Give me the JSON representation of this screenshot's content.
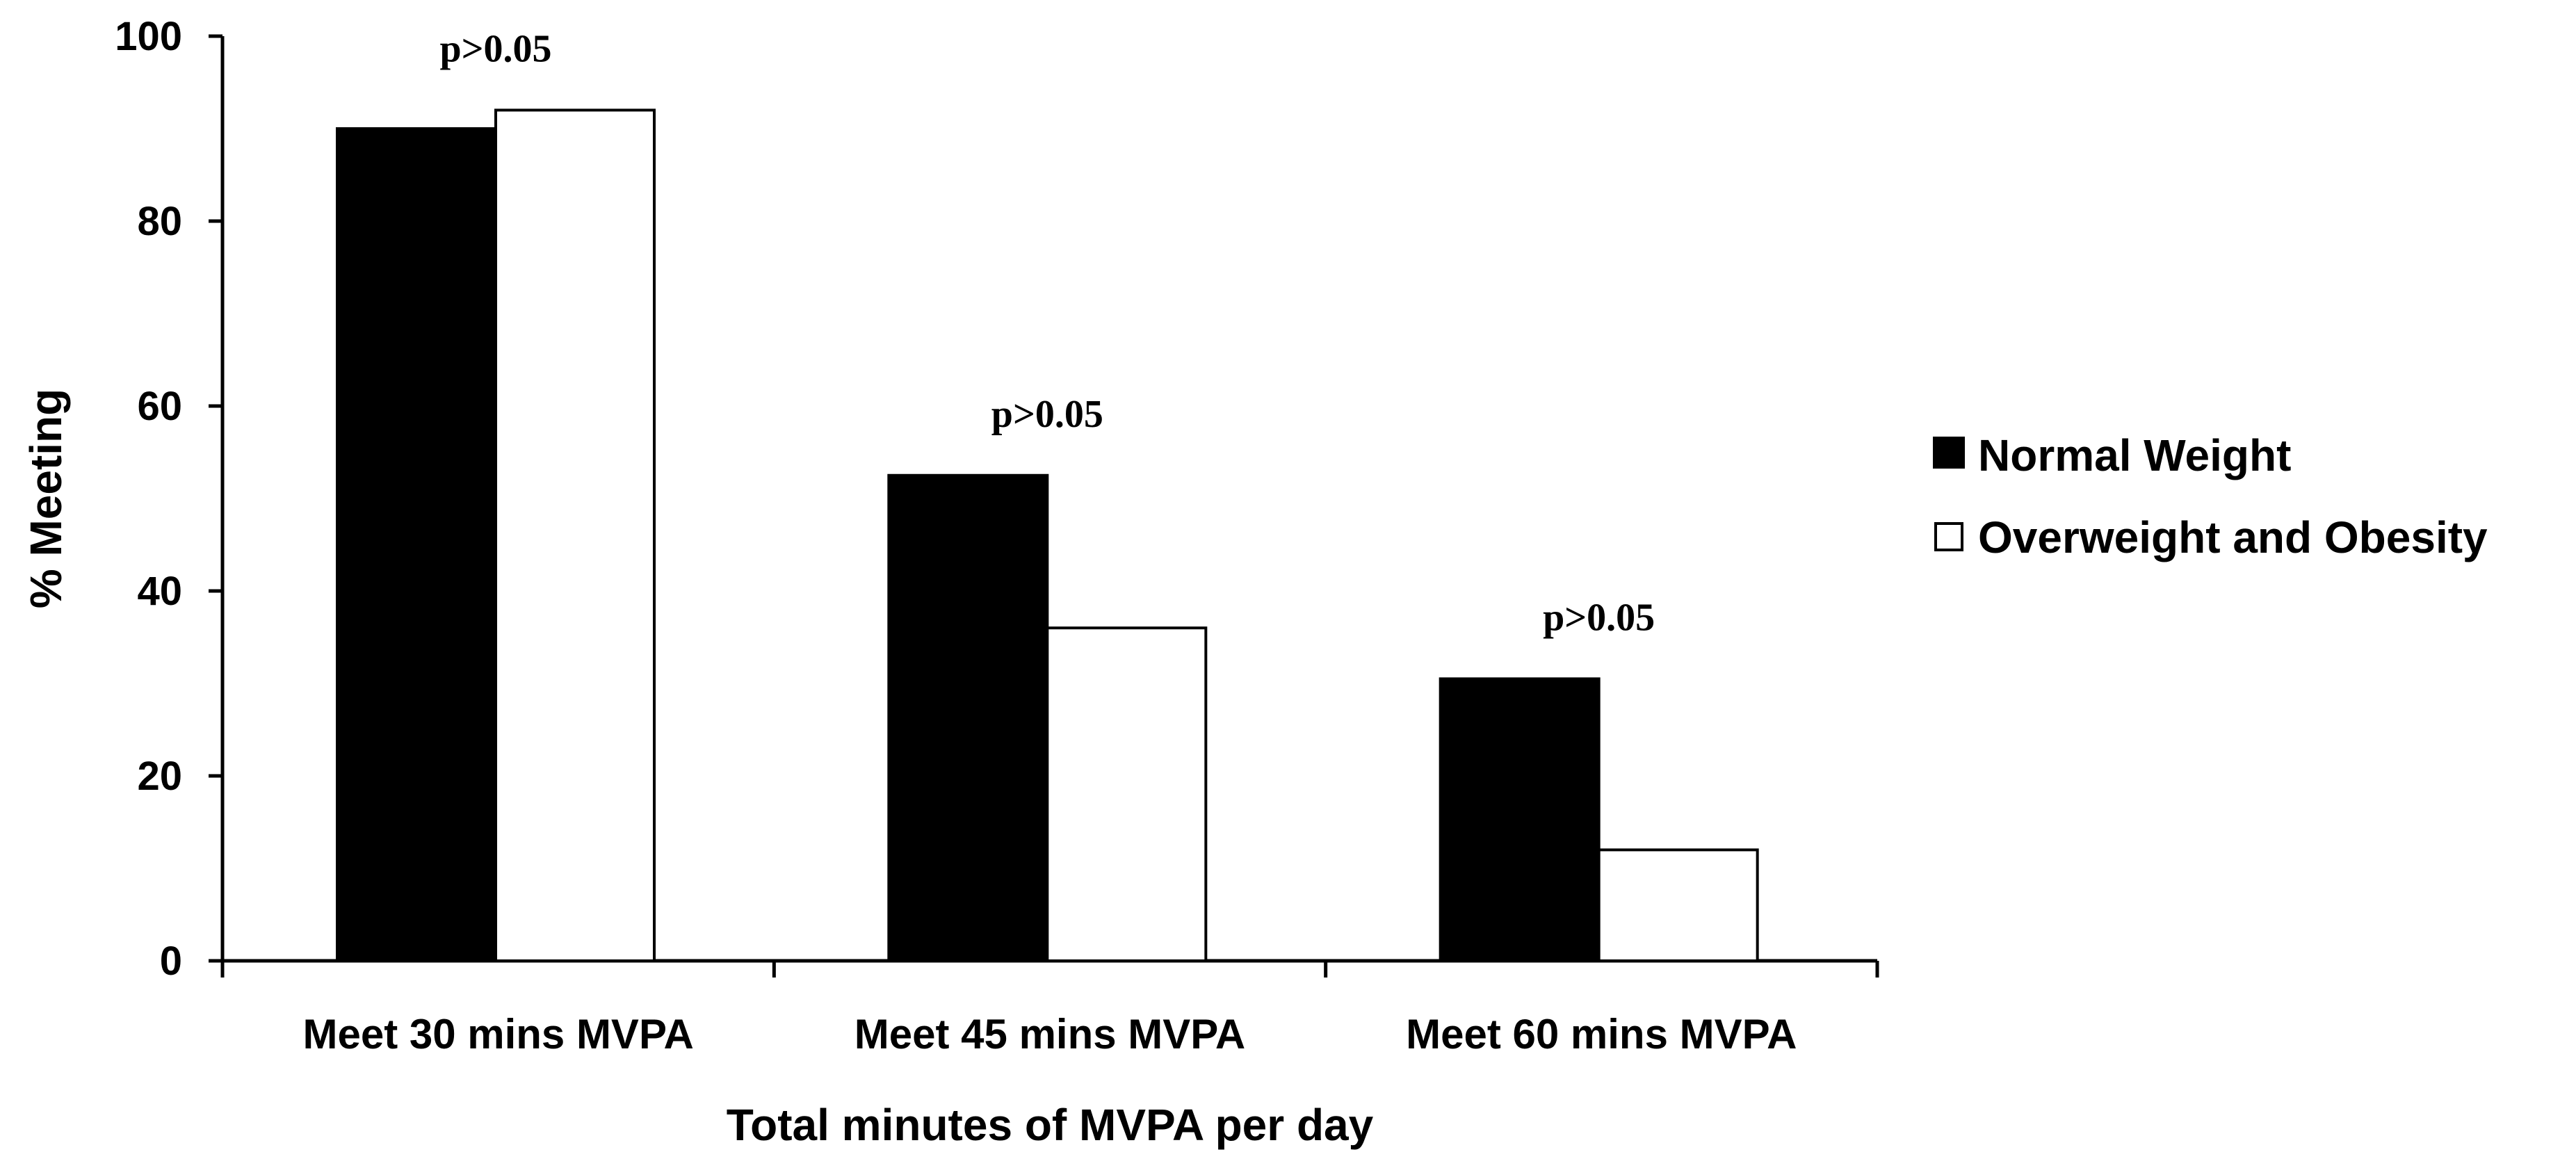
{
  "chart_data": {
    "type": "bar",
    "title": "",
    "xlabel": "Total minutes of MVPA per day",
    "ylabel": "% Meeting",
    "ylim": [
      0,
      100
    ],
    "yticks": [
      "0",
      "20",
      "40",
      "60",
      "80",
      "100"
    ],
    "categories": [
      "Meet 30 mins MVPA",
      "Meet 45 mins MVPA",
      "Meet 60 mins MVPA"
    ],
    "series": [
      {
        "name": "Normal Weight",
        "values": [
          90,
          52.5,
          30.5
        ],
        "color": "#000000"
      },
      {
        "name": "Overweight and Obesity",
        "values": [
          92,
          36,
          12
        ],
        "color": "#ffffff"
      }
    ],
    "annotations": [
      "p>0.05",
      "p>0.05",
      "p>0.05"
    ],
    "legend_position": "right",
    "grid": false
  }
}
